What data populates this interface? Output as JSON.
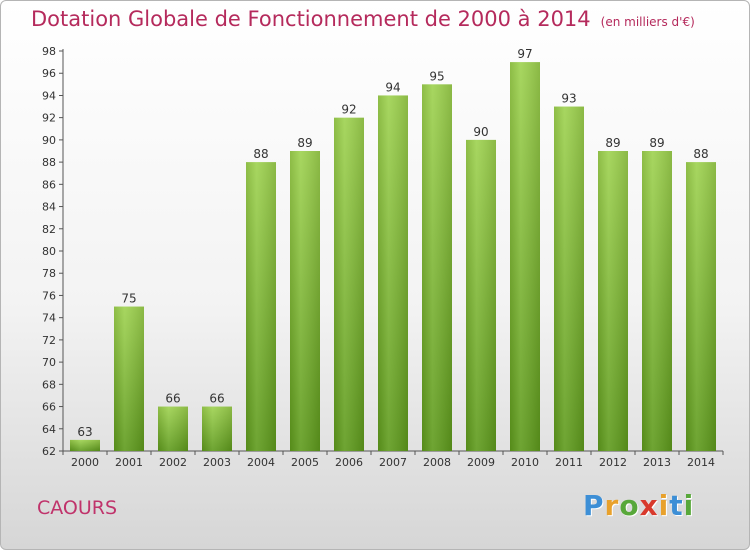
{
  "chart_data": {
    "type": "bar",
    "title": "Dotation Globale de Fonctionnement de 2000 à 2014",
    "subtitle": "(en milliers d'€)",
    "categories": [
      "2000",
      "2001",
      "2002",
      "2003",
      "2004",
      "2005",
      "2006",
      "2007",
      "2008",
      "2009",
      "2010",
      "2011",
      "2012",
      "2013",
      "2014"
    ],
    "values": [
      63,
      75,
      66,
      66,
      88,
      89,
      92,
      94,
      95,
      90,
      97,
      93,
      89,
      89,
      88
    ],
    "ylim": [
      62,
      98
    ],
    "yticks": [
      62,
      64,
      66,
      68,
      70,
      72,
      74,
      76,
      78,
      80,
      82,
      84,
      86,
      88,
      90,
      92,
      94,
      96,
      98
    ],
    "grid": false,
    "bar_color": "#7fc241"
  },
  "footer": {
    "commune": "CAOURS",
    "logo": {
      "letters": [
        "P",
        "r",
        "o",
        "x",
        "i",
        "t",
        "i"
      ],
      "colors": [
        "#3d8fd6",
        "#e8a12c",
        "#58a83a",
        "#d8392c",
        "#e8a12c",
        "#3d8fd6",
        "#58a83a"
      ]
    }
  }
}
